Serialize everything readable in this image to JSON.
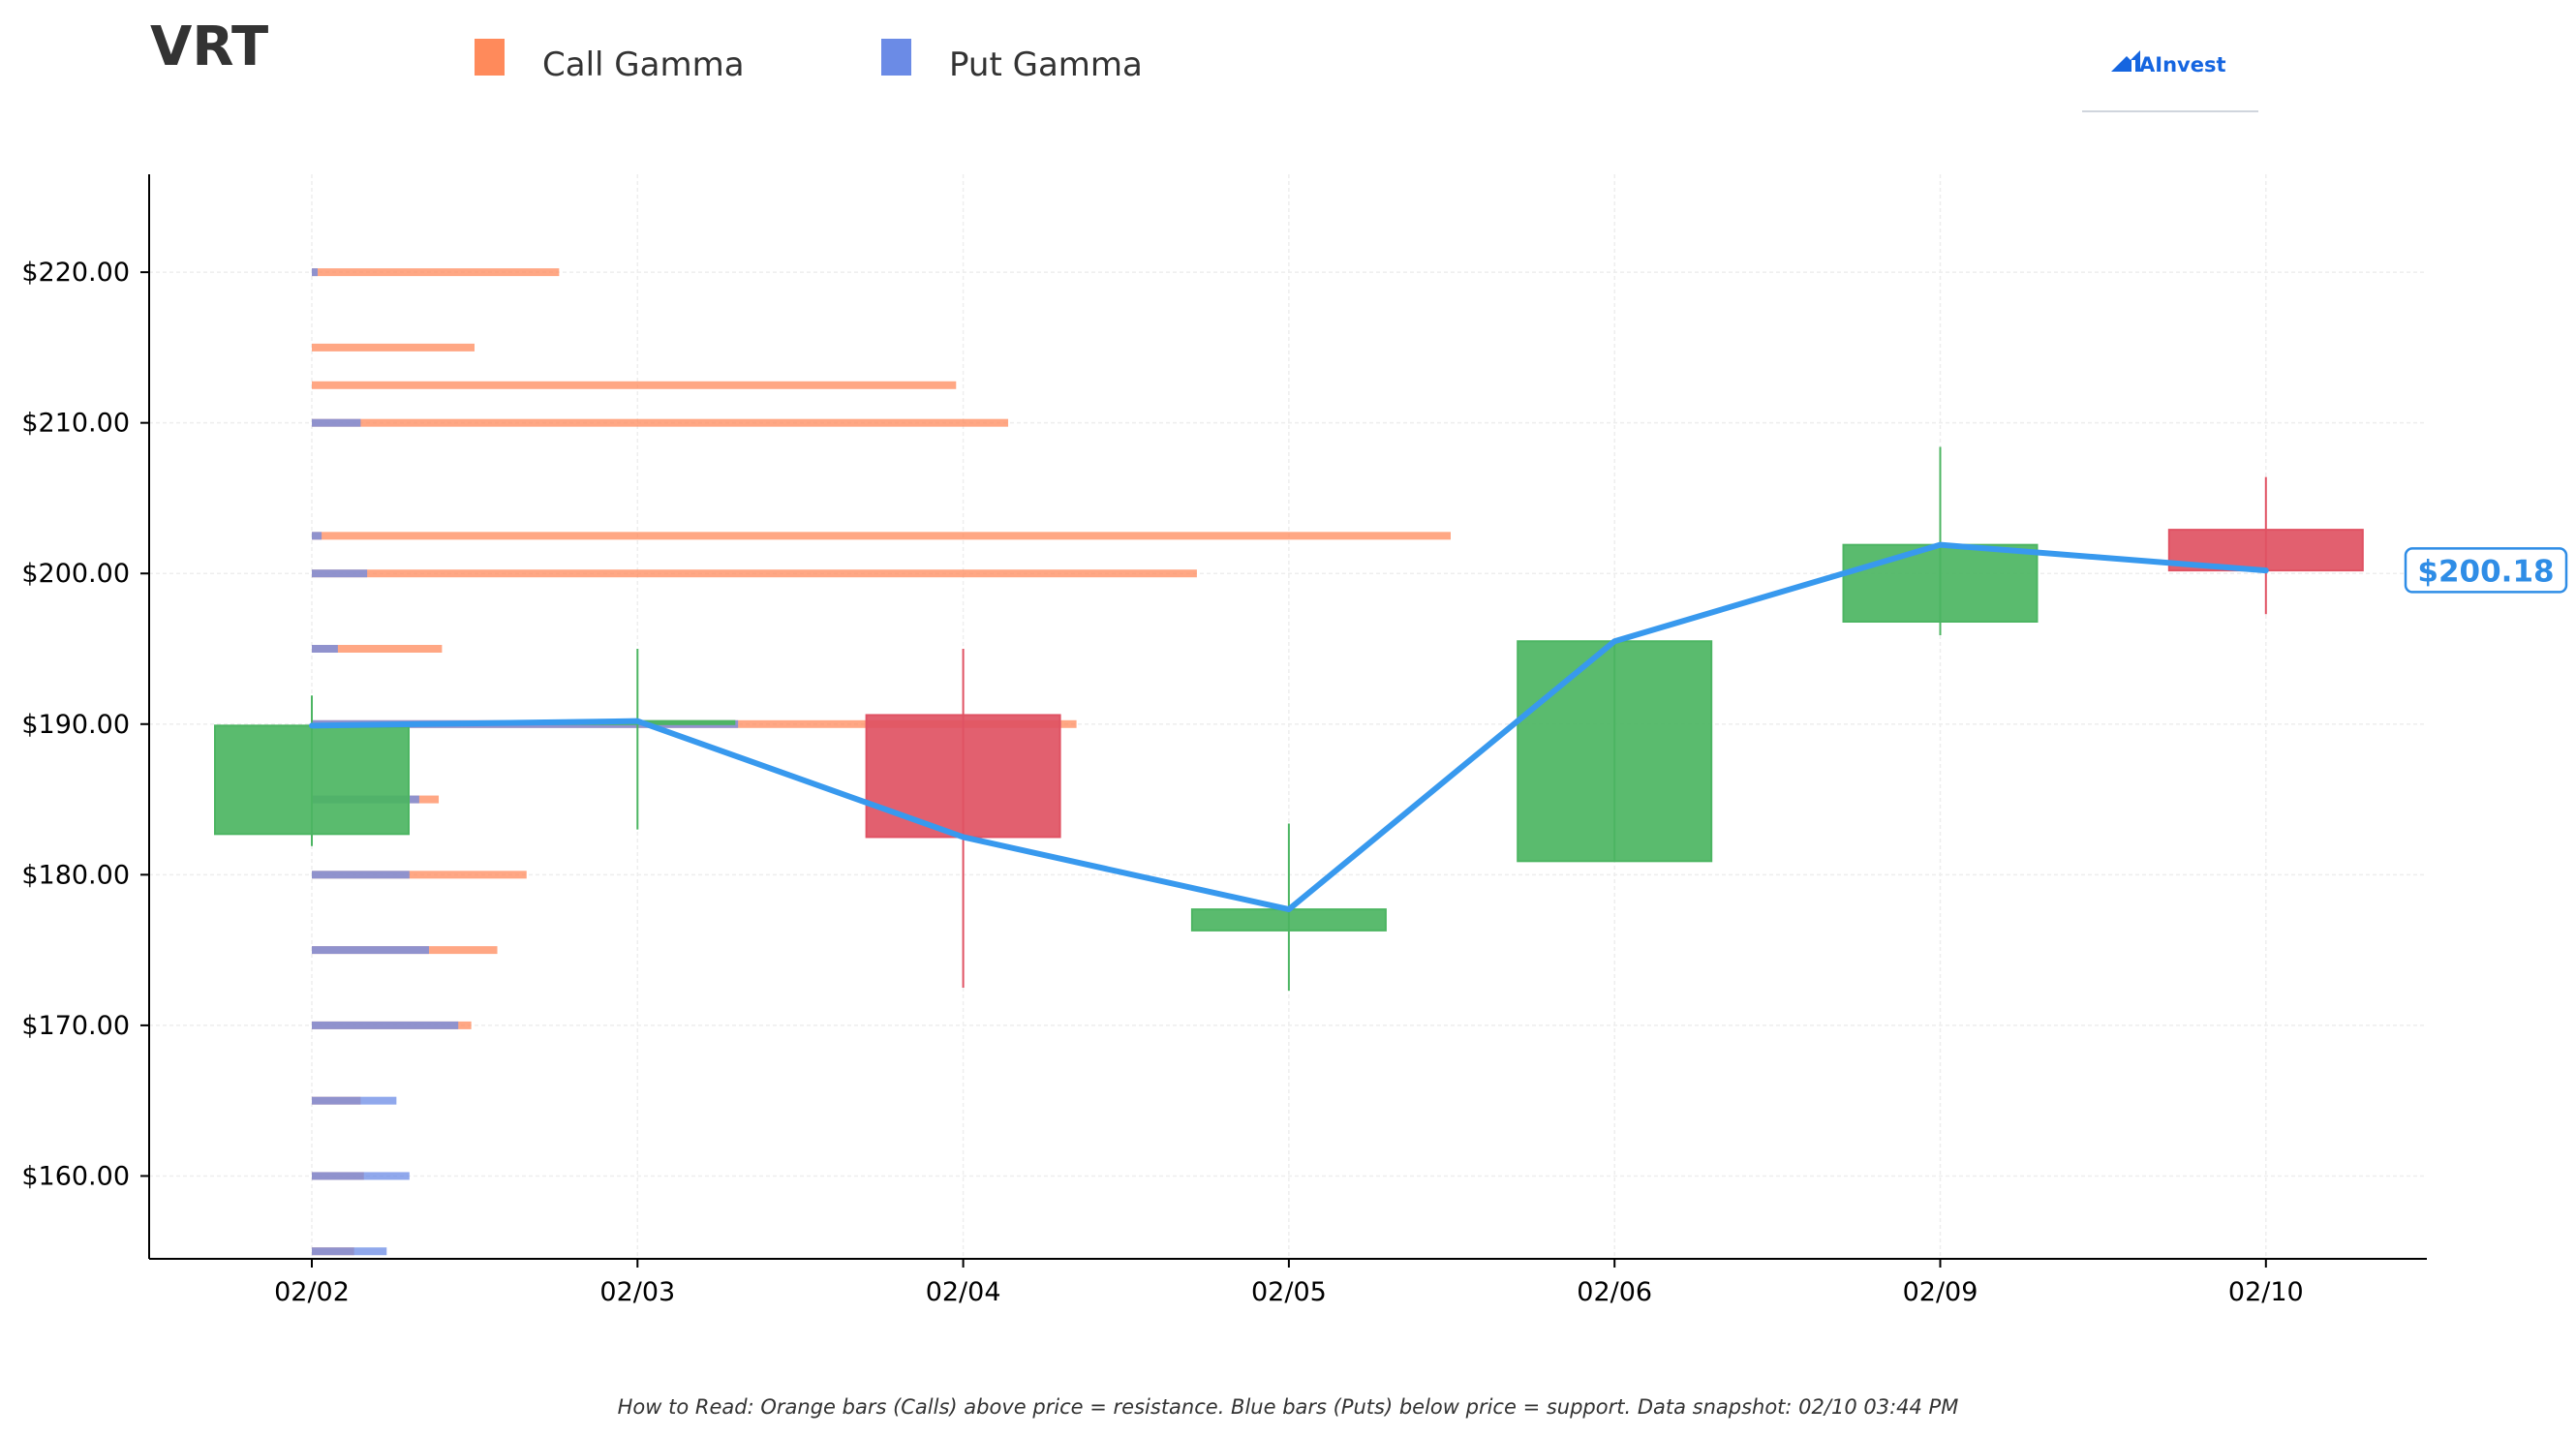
{
  "header": {
    "ticker": "VRT",
    "brand": "AInvest"
  },
  "legend": [
    {
      "label": "Call Gamma",
      "color": "#ff8a5b"
    },
    {
      "label": "Put Gamma",
      "color": "#6b8be6"
    }
  ],
  "footer": {
    "note": "How to Read: Orange bars (Calls) above price = resistance. Blue bars (Puts) below price = support. Data snapshot: 02/10 03:44 PM"
  },
  "current_price": {
    "label": "$200.18",
    "value": 200.18
  },
  "colors": {
    "up": "#4cb562",
    "down": "#e05263",
    "call": "#ff8a5b",
    "put": "#6b8be6",
    "price_line": "#3899ee"
  },
  "chart_data": {
    "type": "candlestick",
    "ylim": [
      154.5,
      226.5
    ],
    "yticks": [
      160,
      170,
      180,
      190,
      200,
      210,
      220
    ],
    "ytick_labels": [
      "$160.00",
      "$170.00",
      "$180.00",
      "$190.00",
      "$200.00",
      "$210.00",
      "$220.00"
    ],
    "categories": [
      "02/02",
      "02/03",
      "02/04",
      "02/05",
      "02/06",
      "02/09",
      "02/10"
    ],
    "candles": [
      {
        "date": "02/02",
        "open": 182.7,
        "high": 191.9,
        "low": 181.9,
        "close": 189.9
      },
      {
        "date": "02/03",
        "open": 190.0,
        "high": 195.0,
        "low": 183.0,
        "close": 190.2
      },
      {
        "date": "02/04",
        "open": 190.6,
        "high": 195.0,
        "low": 172.5,
        "close": 182.5
      },
      {
        "date": "02/05",
        "open": 176.3,
        "high": 183.4,
        "low": 172.3,
        "close": 177.7
      },
      {
        "date": "02/06",
        "open": 180.9,
        "high": 195.5,
        "low": 180.9,
        "close": 195.5
      },
      {
        "date": "02/09",
        "open": 196.8,
        "high": 208.4,
        "low": 195.9,
        "close": 201.9
      },
      {
        "date": "02/10",
        "open": 202.9,
        "high": 206.4,
        "low": 197.3,
        "close": 200.2
      }
    ],
    "close_line": [
      189.9,
      190.2,
      182.5,
      177.7,
      195.5,
      201.9,
      200.2
    ],
    "gamma_by_strike": [
      {
        "strike": 155.0,
        "call": 1.3,
        "put": 2.3
      },
      {
        "strike": 160.0,
        "call": 1.6,
        "put": 3.0
      },
      {
        "strike": 165.0,
        "call": 1.5,
        "put": 2.6
      },
      {
        "strike": 170.0,
        "call": 4.9,
        "put": 4.5
      },
      {
        "strike": 175.0,
        "call": 5.7,
        "put": 3.6
      },
      {
        "strike": 180.0,
        "call": 6.6,
        "put": 3.0
      },
      {
        "strike": 185.0,
        "call": 3.9,
        "put": 3.3
      },
      {
        "strike": 190.0,
        "call": 23.5,
        "put": 13.1
      },
      {
        "strike": 195.0,
        "call": 4.0,
        "put": 0.8
      },
      {
        "strike": 200.0,
        "call": 27.2,
        "put": 1.7
      },
      {
        "strike": 202.5,
        "call": 35.0,
        "put": 0.3
      },
      {
        "strike": 210.0,
        "call": 21.4,
        "put": 1.5
      },
      {
        "strike": 212.5,
        "call": 19.8,
        "put": 0.0
      },
      {
        "strike": 215.0,
        "call": 5.0,
        "put": 0.0
      },
      {
        "strike": 220.0,
        "call": 7.6,
        "put": 0.1
      }
    ],
    "gamma_scale_max": 35.0
  }
}
